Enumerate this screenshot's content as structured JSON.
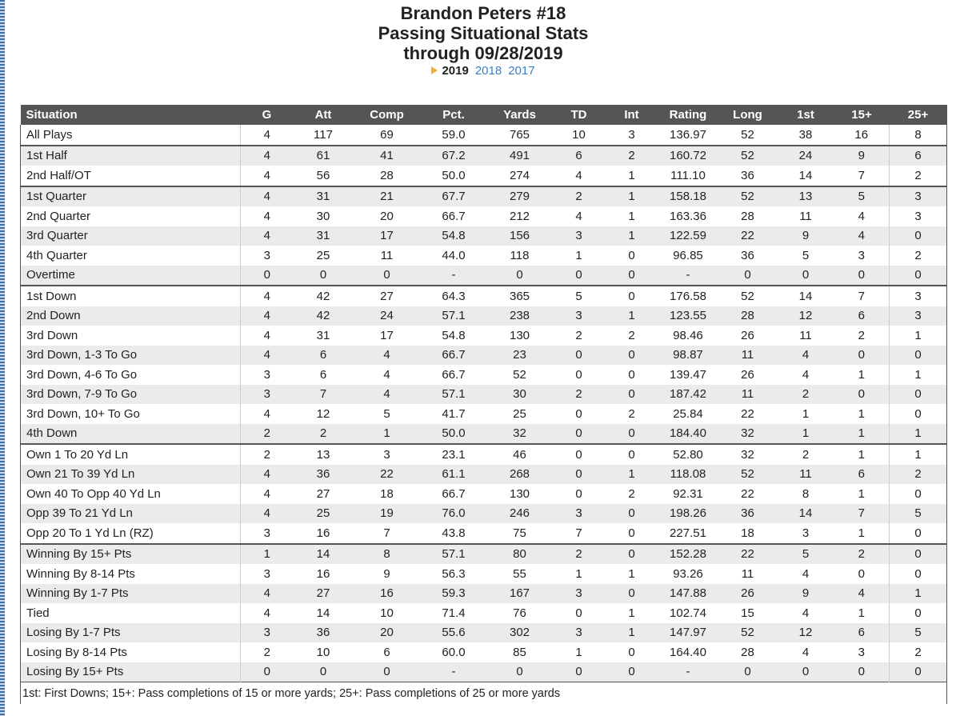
{
  "header": {
    "title": "Brandon Peters #18",
    "subtitle": "Passing Situational Stats",
    "date_line": "through 09/28/2019",
    "seasons": [
      "2019",
      "2018",
      "2017"
    ]
  },
  "table": {
    "columns": [
      "Situation",
      "G",
      "Att",
      "Comp",
      "Pct.",
      "Yards",
      "TD",
      "Int",
      "Rating",
      "Long",
      "1st",
      "15+",
      "25+"
    ],
    "groups": [
      [
        [
          "All Plays",
          "4",
          "117",
          "69",
          "59.0",
          "765",
          "10",
          "3",
          "136.97",
          "52",
          "38",
          "16",
          "8"
        ]
      ],
      [
        [
          "1st Half",
          "4",
          "61",
          "41",
          "67.2",
          "491",
          "6",
          "2",
          "160.72",
          "52",
          "24",
          "9",
          "6"
        ],
        [
          "2nd Half/OT",
          "4",
          "56",
          "28",
          "50.0",
          "274",
          "4",
          "1",
          "111.10",
          "36",
          "14",
          "7",
          "2"
        ]
      ],
      [
        [
          "1st Quarter",
          "4",
          "31",
          "21",
          "67.7",
          "279",
          "2",
          "1",
          "158.18",
          "52",
          "13",
          "5",
          "3"
        ],
        [
          "2nd Quarter",
          "4",
          "30",
          "20",
          "66.7",
          "212",
          "4",
          "1",
          "163.36",
          "28",
          "11",
          "4",
          "3"
        ],
        [
          "3rd Quarter",
          "4",
          "31",
          "17",
          "54.8",
          "156",
          "3",
          "1",
          "122.59",
          "22",
          "9",
          "4",
          "0"
        ],
        [
          "4th Quarter",
          "3",
          "25",
          "11",
          "44.0",
          "118",
          "1",
          "0",
          "96.85",
          "36",
          "5",
          "3",
          "2"
        ],
        [
          "Overtime",
          "0",
          "0",
          "0",
          "-",
          "0",
          "0",
          "0",
          "-",
          "0",
          "0",
          "0",
          "0"
        ]
      ],
      [
        [
          "1st Down",
          "4",
          "42",
          "27",
          "64.3",
          "365",
          "5",
          "0",
          "176.58",
          "52",
          "14",
          "7",
          "3"
        ],
        [
          "2nd Down",
          "4",
          "42",
          "24",
          "57.1",
          "238",
          "3",
          "1",
          "123.55",
          "28",
          "12",
          "6",
          "3"
        ],
        [
          "3rd Down",
          "4",
          "31",
          "17",
          "54.8",
          "130",
          "2",
          "2",
          "98.46",
          "26",
          "11",
          "2",
          "1"
        ],
        [
          "3rd Down, 1-3 To Go",
          "4",
          "6",
          "4",
          "66.7",
          "23",
          "0",
          "0",
          "98.87",
          "11",
          "4",
          "0",
          "0"
        ],
        [
          "3rd Down, 4-6 To Go",
          "3",
          "6",
          "4",
          "66.7",
          "52",
          "0",
          "0",
          "139.47",
          "26",
          "4",
          "1",
          "1"
        ],
        [
          "3rd Down, 7-9 To Go",
          "3",
          "7",
          "4",
          "57.1",
          "30",
          "2",
          "0",
          "187.42",
          "11",
          "2",
          "0",
          "0"
        ],
        [
          "3rd Down, 10+ To Go",
          "4",
          "12",
          "5",
          "41.7",
          "25",
          "0",
          "2",
          "25.84",
          "22",
          "1",
          "1",
          "0"
        ],
        [
          "4th Down",
          "2",
          "2",
          "1",
          "50.0",
          "32",
          "0",
          "0",
          "184.40",
          "32",
          "1",
          "1",
          "1"
        ]
      ],
      [
        [
          "Own 1 To 20 Yd Ln",
          "2",
          "13",
          "3",
          "23.1",
          "46",
          "0",
          "0",
          "52.80",
          "32",
          "2",
          "1",
          "1"
        ],
        [
          "Own 21 To 39 Yd Ln",
          "4",
          "36",
          "22",
          "61.1",
          "268",
          "0",
          "1",
          "118.08",
          "52",
          "11",
          "6",
          "2"
        ],
        [
          "Own 40 To Opp 40 Yd Ln",
          "4",
          "27",
          "18",
          "66.7",
          "130",
          "0",
          "2",
          "92.31",
          "22",
          "8",
          "1",
          "0"
        ],
        [
          "Opp 39 To 21 Yd Ln",
          "4",
          "25",
          "19",
          "76.0",
          "246",
          "3",
          "0",
          "198.26",
          "36",
          "14",
          "7",
          "5"
        ],
        [
          "Opp 20 To 1 Yd Ln (RZ)",
          "3",
          "16",
          "7",
          "43.8",
          "75",
          "7",
          "0",
          "227.51",
          "18",
          "3",
          "1",
          "0"
        ]
      ],
      [
        [
          "Winning By 15+ Pts",
          "1",
          "14",
          "8",
          "57.1",
          "80",
          "2",
          "0",
          "152.28",
          "22",
          "5",
          "2",
          "0"
        ],
        [
          "Winning By 8-14 Pts",
          "3",
          "16",
          "9",
          "56.3",
          "55",
          "1",
          "1",
          "93.26",
          "11",
          "4",
          "0",
          "0"
        ],
        [
          "Winning By 1-7 Pts",
          "4",
          "27",
          "16",
          "59.3",
          "167",
          "3",
          "0",
          "147.88",
          "26",
          "9",
          "4",
          "1"
        ],
        [
          "Tied",
          "4",
          "14",
          "10",
          "71.4",
          "76",
          "0",
          "1",
          "102.74",
          "15",
          "4",
          "1",
          "0"
        ],
        [
          "Losing By 1-7 Pts",
          "3",
          "36",
          "20",
          "55.6",
          "302",
          "3",
          "1",
          "147.97",
          "52",
          "12",
          "6",
          "5"
        ],
        [
          "Losing By 8-14 Pts",
          "2",
          "10",
          "6",
          "60.0",
          "85",
          "1",
          "0",
          "164.40",
          "28",
          "4",
          "3",
          "2"
        ],
        [
          "Losing By 15+ Pts",
          "0",
          "0",
          "0",
          "-",
          "0",
          "0",
          "0",
          "-",
          "0",
          "0",
          "0",
          "0"
        ]
      ]
    ],
    "footnote": "1st: First Downs; 15+: Pass completions of 15 or more yards; 25+: Pass completions of 25 or more yards"
  }
}
